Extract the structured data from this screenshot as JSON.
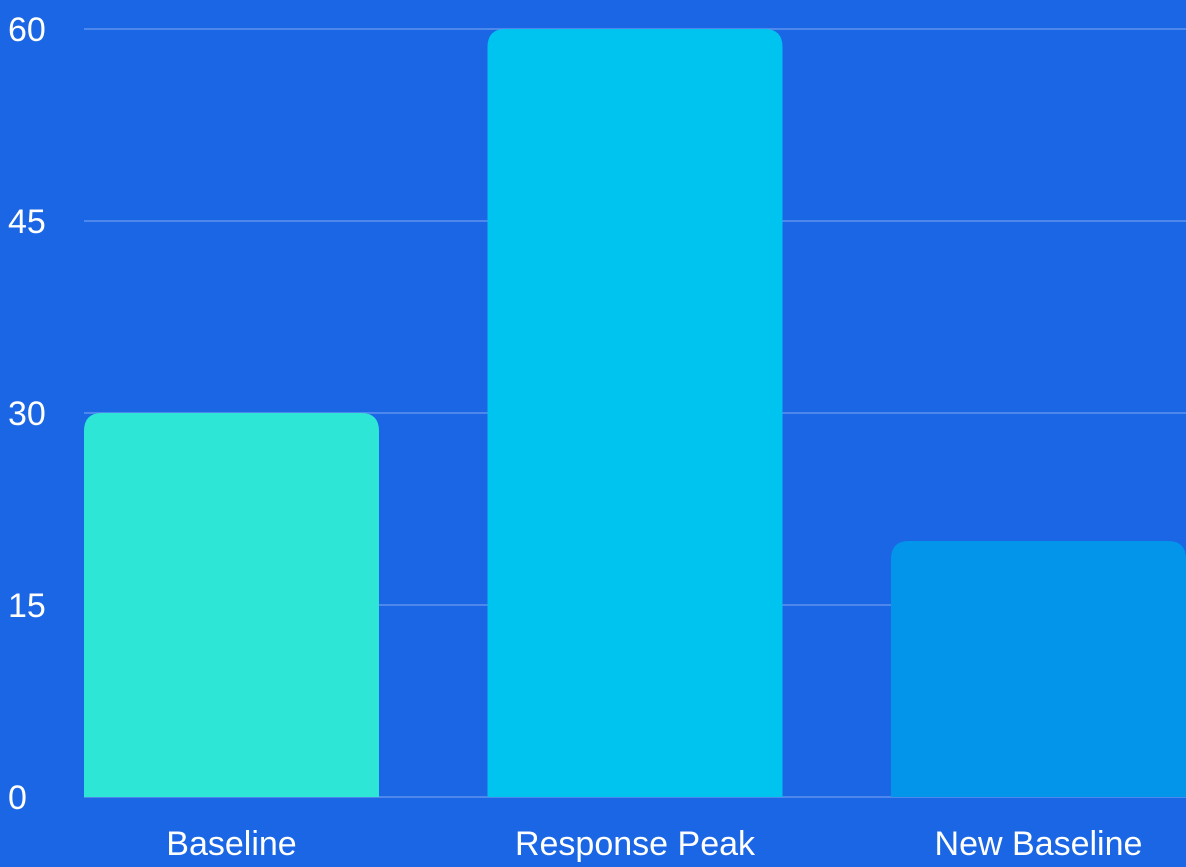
{
  "chart_data": {
    "type": "bar",
    "title": "",
    "xlabel": "",
    "ylabel": "",
    "categories": [
      "Baseline",
      "Response Peak",
      "New Baseline"
    ],
    "values": [
      30,
      60,
      20
    ],
    "ylim": [
      0,
      60
    ],
    "yticks": [
      0,
      15,
      30,
      45,
      60
    ],
    "grid": true,
    "legend": "none",
    "colors": {
      "background": "#1a66e4",
      "grid": "#5f93ee",
      "text": "#ffffff",
      "bars": [
        "#2ee6d6",
        "#00c4f0",
        "#0395ea"
      ]
    }
  }
}
